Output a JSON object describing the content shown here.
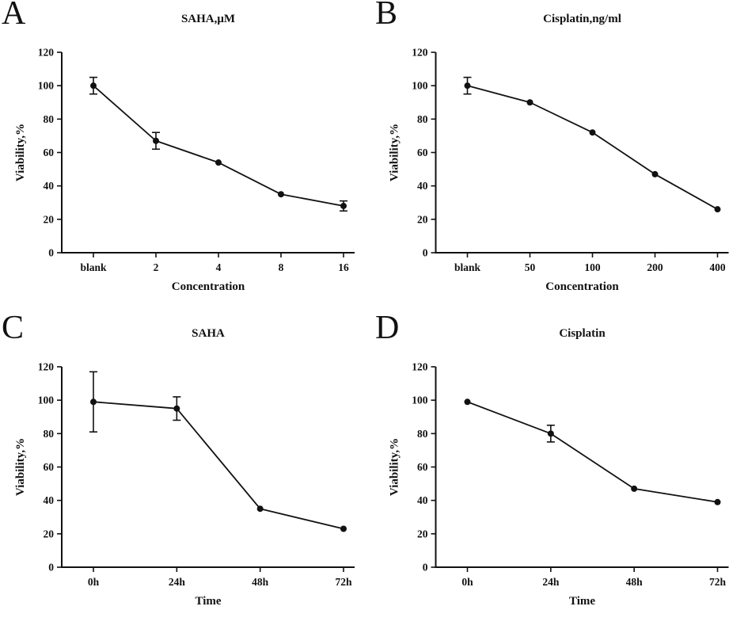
{
  "figure": {
    "background": "#ffffff",
    "line_color": "#111111"
  },
  "chart_data": [
    {
      "panel": "A",
      "type": "line",
      "title": "SAHA,μM",
      "xlabel": "Concentration",
      "ylabel": "Viability,%",
      "categories": [
        "blank",
        "2",
        "4",
        "8",
        "16"
      ],
      "values": [
        100,
        67,
        54,
        35,
        28
      ],
      "errors": [
        5,
        5,
        0,
        0,
        3
      ],
      "ylim": [
        0,
        120
      ],
      "yticks": [
        0,
        20,
        40,
        60,
        80,
        100,
        120
      ],
      "legend": "none",
      "grid": false
    },
    {
      "panel": "B",
      "type": "line",
      "title": "Cisplatin,ng/ml",
      "xlabel": "Concentration",
      "ylabel": "Viability,%",
      "categories": [
        "blank",
        "50",
        "100",
        "200",
        "400"
      ],
      "values": [
        100,
        90,
        72,
        47,
        26
      ],
      "errors": [
        5,
        0,
        0,
        0,
        0
      ],
      "ylim": [
        0,
        120
      ],
      "yticks": [
        0,
        20,
        40,
        60,
        80,
        100,
        120
      ],
      "legend": "none",
      "grid": false
    },
    {
      "panel": "C",
      "type": "line",
      "title": "SAHA",
      "xlabel": "Time",
      "ylabel": "Viability,%",
      "categories": [
        "0h",
        "24h",
        "48h",
        "72h"
      ],
      "values": [
        99,
        95,
        35,
        23
      ],
      "errors": [
        18,
        7,
        0,
        0
      ],
      "ylim": [
        0,
        120
      ],
      "yticks": [
        0,
        20,
        40,
        60,
        80,
        100,
        120
      ],
      "legend": "none",
      "grid": false
    },
    {
      "panel": "D",
      "type": "line",
      "title": "Cisplatin",
      "xlabel": "Time",
      "ylabel": "Viability,%",
      "categories": [
        "0h",
        "24h",
        "48h",
        "72h"
      ],
      "values": [
        99,
        80,
        47,
        39
      ],
      "errors": [
        0,
        5,
        0,
        0
      ],
      "ylim": [
        0,
        120
      ],
      "yticks": [
        0,
        20,
        40,
        60,
        80,
        100,
        120
      ],
      "legend": "none",
      "grid": false
    }
  ]
}
